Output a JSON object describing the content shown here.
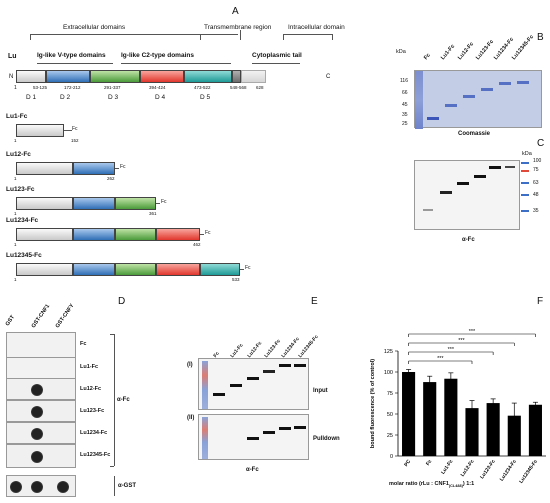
{
  "panel_a": {
    "letter": "A",
    "header_extracellular": "Extracellular domains",
    "header_transmembrane": "Transmembrane region",
    "header_intracellular": "Intracellular domain",
    "protein": "Lu",
    "group_v": "Ig-like V-type domains",
    "group_c2": "Ig-like C2-type domains",
    "group_cyto": "Cytoplasmic tail",
    "n_term": "N",
    "c_term": "C",
    "start": "1",
    "ranges": [
      "53-125",
      "172-212",
      "291-337",
      "394-424",
      "473-522",
      "548-568",
      "628"
    ],
    "domains": [
      "D 1",
      "D 2",
      "D 3",
      "D 4",
      "D 5"
    ],
    "constructs": [
      {
        "name": "Lu1-Fc",
        "end": "152"
      },
      {
        "name": "Lu12-Fc",
        "end": "262"
      },
      {
        "name": "Lu123-Fc",
        "end": "361"
      },
      {
        "name": "Lu1234-Fc",
        "end": "462"
      },
      {
        "name": "Lu12345-Fc",
        "end": "533"
      }
    ],
    "fc": "Fc"
  },
  "panel_b": {
    "letter": "B",
    "kda": "kDa",
    "markers": [
      "116",
      "66",
      "45",
      "35",
      "25"
    ],
    "lanes": [
      "Fc",
      "Lu1-Fc",
      "Lu12-Fc",
      "Lu123-Fc",
      "Lu1234-Fc",
      "Lu12345-Fc"
    ],
    "caption": "Coomassie"
  },
  "panel_c": {
    "letter": "C",
    "kda": "kDa",
    "markers": [
      "100",
      "75",
      "63",
      "48",
      "35"
    ],
    "caption": "α-Fc"
  },
  "panel_d": {
    "letter": "D",
    "cols": [
      "GST",
      "GST-CNF1",
      "GST-CNFY"
    ],
    "rows": [
      "Fc",
      "Lu1-Fc",
      "Lu12-Fc",
      "Lu123-Fc",
      "Lu1234-Fc",
      "Lu12345-Fc"
    ],
    "bracket_fc": "α-Fc",
    "bracket_gst": "α-GST"
  },
  "panel_e": {
    "letter": "E",
    "lanes": [
      "Fc",
      "Lu1-Fc",
      "Lu12-Fc",
      "Lu123-Fc",
      "Lu1234-Fc",
      "Lu12345-Fc"
    ],
    "blot1_tag": "(I)",
    "blot1_label": "Input",
    "blot2_tag": "(II)",
    "blot2_label": "Pulldown",
    "caption": "α-Fc"
  },
  "panel_f": {
    "letter": "F",
    "sig": "***",
    "xlabel": "molar ratio (rLu : CNF1",
    "xlabel_sub": "(CL488)",
    "xlabel_end": ") 1:1"
  },
  "chart_data": {
    "type": "bar",
    "categories": [
      "PC",
      "Fc",
      "Lu1-Fc",
      "Lu12-Fc",
      "Lu123-Fc",
      "Lu1234-Fc",
      "Lu12345-Fc"
    ],
    "values": [
      100,
      88,
      92,
      57,
      63,
      48,
      61
    ],
    "errors": [
      3,
      7,
      7,
      9,
      5,
      15,
      3
    ],
    "ylabel": "bound fluorescence (% of control)",
    "yticks": [
      "0",
      "25",
      "50",
      "75",
      "100",
      "125"
    ],
    "ylim": [
      0,
      125
    ],
    "bar_color": "#000000"
  }
}
